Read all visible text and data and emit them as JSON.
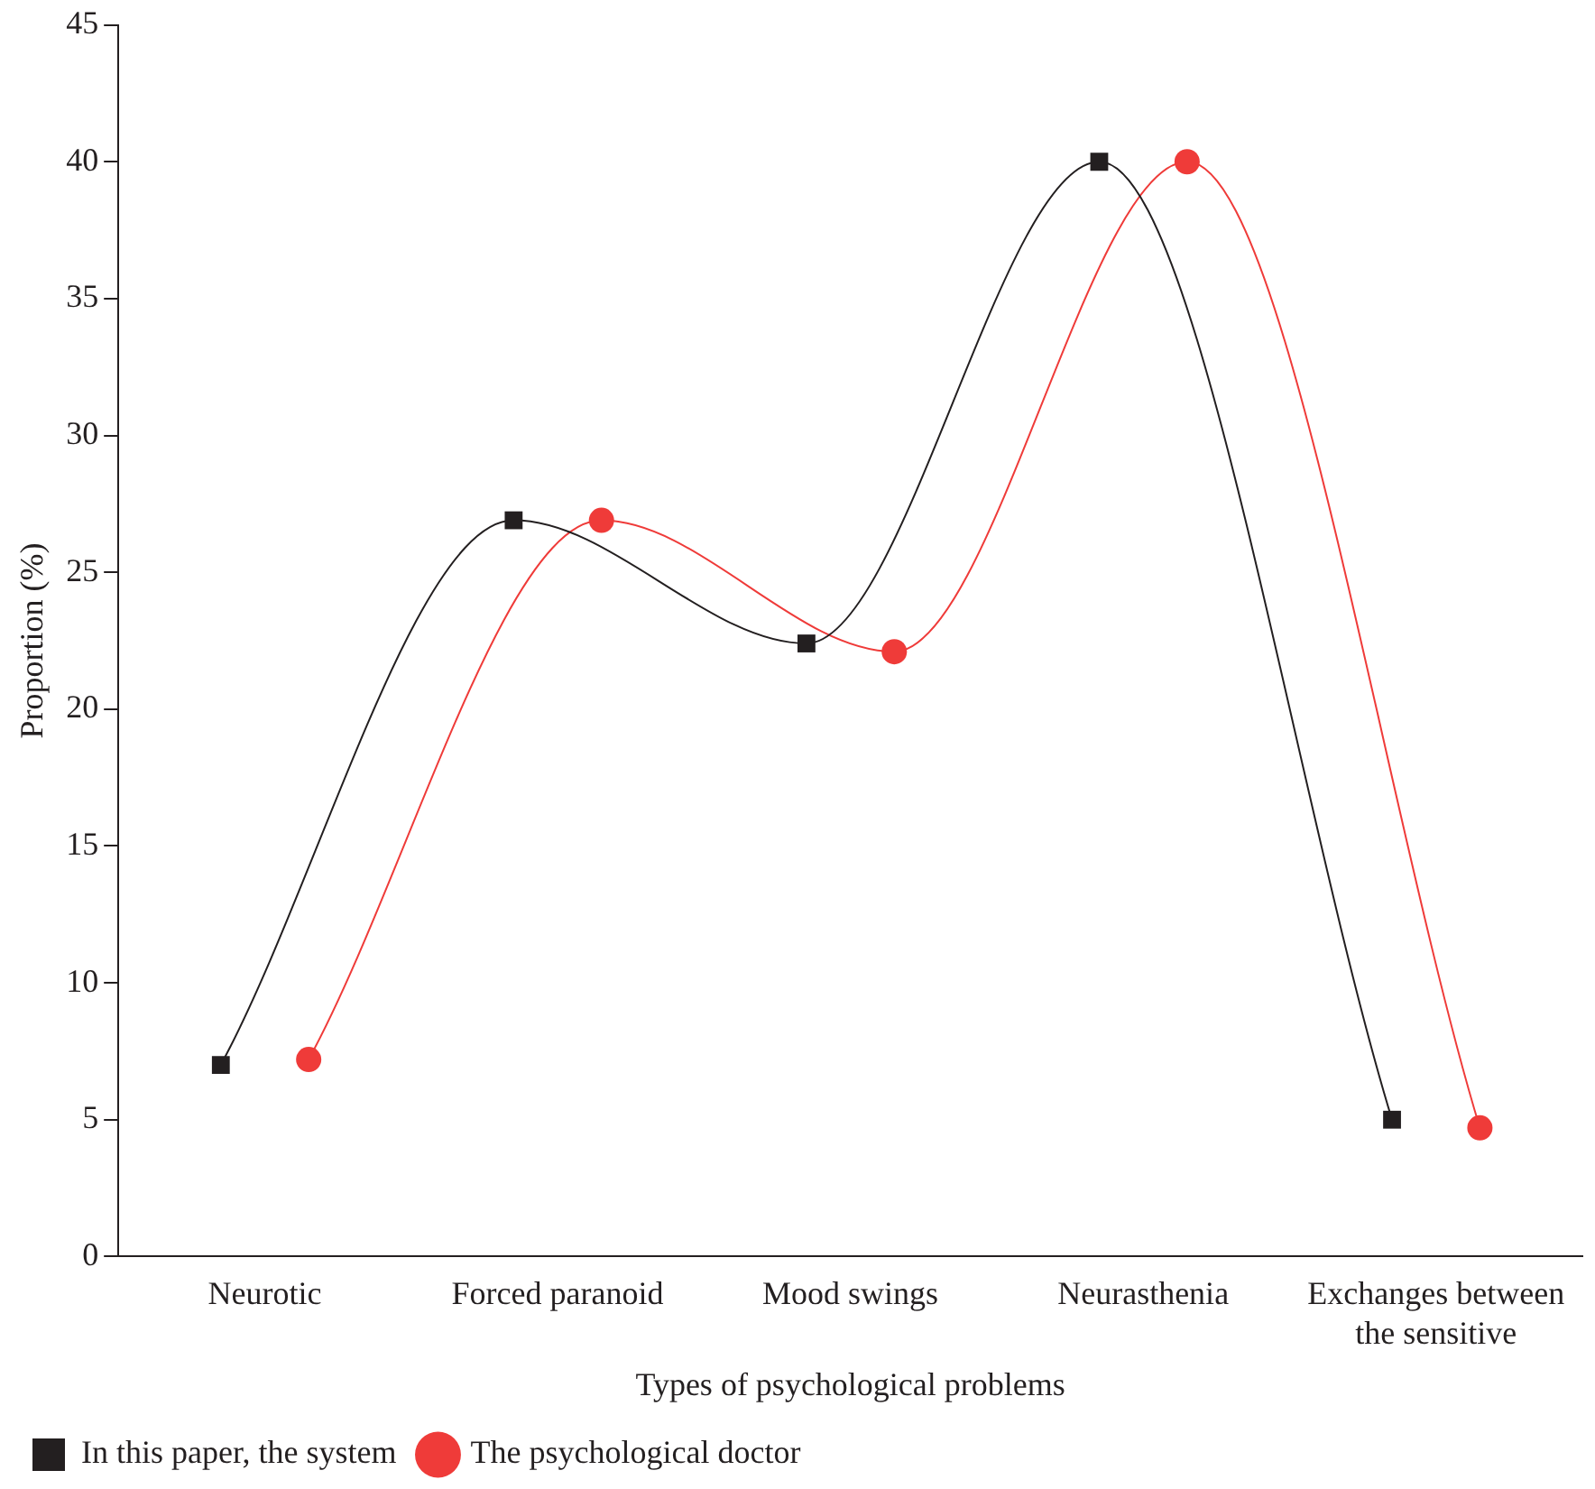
{
  "chart_data": {
    "type": "line",
    "xlabel": "Types of psychological problems",
    "ylabel": "Proportion (%)",
    "categories": [
      "Neurotic",
      "Forced paranoid",
      "Mood swings",
      "Neurasthenia",
      "Exchanges between the sensitive"
    ],
    "series": [
      {
        "name": "In this paper, the system",
        "color": "#231f20",
        "marker": "square",
        "values": [
          7,
          26.9,
          22.4,
          40,
          5
        ]
      },
      {
        "name": "The psychological doctor",
        "color": "#ef3b39",
        "marker": "circle",
        "values": [
          7.2,
          26.9,
          22.1,
          40,
          4.7
        ]
      }
    ],
    "ylim": [
      0,
      45
    ],
    "yticks": [
      0,
      5,
      10,
      15,
      20,
      25,
      30,
      35,
      40,
      45
    ],
    "grid": false,
    "legend": "bottom left",
    "line_style": "solid"
  }
}
